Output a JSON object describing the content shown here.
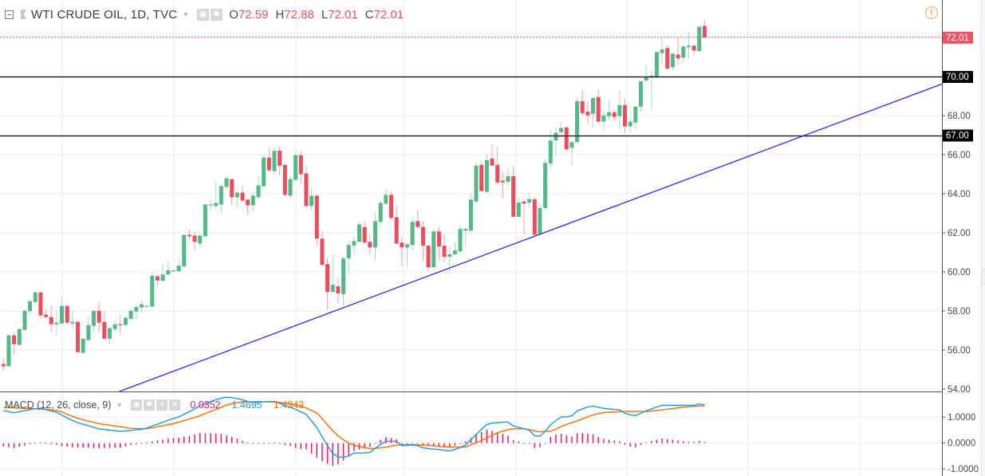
{
  "header": {
    "title": "WTI CRUDE OIL, 1D, TVC",
    "open_label": "O",
    "open": "72.59",
    "high_label": "H",
    "high": "72.88",
    "low_label": "L",
    "low": "72.01",
    "close_label": "C",
    "close": "72.01",
    "icons": [
      "collapse-icon",
      "flag-icon",
      "chevron-down-icon",
      "eye-icon",
      "gear-icon",
      "warning-icon"
    ]
  },
  "macd_legend": {
    "title": "MACD (12, 26, close, 9)",
    "histogram_value": "0.0352",
    "macd_value": "1.4695",
    "signal_value": "1.4343",
    "icons": [
      "chevron-down-icon",
      "eye-icon",
      "gear-icon",
      "plus-icon",
      "close-icon"
    ]
  },
  "colors": {
    "up": "#53b987",
    "down": "#eb4d5c",
    "up_wick": "#a6dcc2",
    "down_wick": "#f6a1a8",
    "macd": "#2196f3",
    "signal": "#ff6d00",
    "histogram": "#e91e63",
    "trendline": "#2a2aff",
    "level_line": "#000000",
    "last_price": "#ef5366",
    "grid": "#e6edf3"
  },
  "chart_data": [
    {
      "type": "candlestick",
      "title": "WTI CRUDE OIL, 1D, TVC",
      "ylim": [
        53.9,
        73.8
      ],
      "y_ticks": [
        "54.00",
        "56.00",
        "58.00",
        "60.00",
        "62.00",
        "64.00",
        "66.00",
        "68.00"
      ],
      "grid": true,
      "horizontal_lines": [
        {
          "price": 70.0,
          "label": "70.00"
        },
        {
          "price": 67.0,
          "label": "67.00"
        }
      ],
      "last_price": {
        "price": 72.01,
        "label": "72.01"
      },
      "trendline": {
        "start": {
          "bar": 23,
          "price": 54.0
        },
        "end": {
          "bar": 176.7,
          "price": 69.62
        }
      },
      "candles_ohlc": [
        [
          55.28,
          55.56,
          54.95,
          55.17
        ],
        [
          55.17,
          56.8,
          55.17,
          56.75
        ],
        [
          56.75,
          56.9,
          55.78,
          56.3
        ],
        [
          56.26,
          57.15,
          56.26,
          57.07
        ],
        [
          57.03,
          58.1,
          57.03,
          58.01
        ],
        [
          57.99,
          58.55,
          57.8,
          58.5
        ],
        [
          58.46,
          59.0,
          58.4,
          58.95
        ],
        [
          58.95,
          58.95,
          57.6,
          57.77
        ],
        [
          57.81,
          58.1,
          57.6,
          57.69
        ],
        [
          57.69,
          58.3,
          56.9,
          57.32
        ],
        [
          57.32,
          58.01,
          56.73,
          57.4
        ],
        [
          57.36,
          58.7,
          57.3,
          58.26
        ],
        [
          58.26,
          58.3,
          57.35,
          57.4
        ],
        [
          57.36,
          58.0,
          57.1,
          57.44
        ],
        [
          57.44,
          57.5,
          55.89,
          55.89
        ],
        [
          55.85,
          56.6,
          55.8,
          56.58
        ],
        [
          56.5,
          57.7,
          56.5,
          57.28
        ],
        [
          57.24,
          58.01,
          56.9,
          58.01
        ],
        [
          58.01,
          58.5,
          56.9,
          57.4
        ],
        [
          57.44,
          58.0,
          56.55,
          56.58
        ],
        [
          56.58,
          57.2,
          56.3,
          57.12
        ],
        [
          57.07,
          57.5,
          56.9,
          57.32
        ],
        [
          57.32,
          57.8,
          56.8,
          57.28
        ],
        [
          57.28,
          57.75,
          57.2,
          57.65
        ],
        [
          57.6,
          58.1,
          57.4,
          58.01
        ],
        [
          57.97,
          58.3,
          57.6,
          58.2
        ],
        [
          58.18,
          58.5,
          57.9,
          58.34
        ],
        [
          58.22,
          58.3,
          58.2,
          58.26
        ],
        [
          58.22,
          59.96,
          58.2,
          59.8
        ],
        [
          59.77,
          59.9,
          59.3,
          59.56
        ],
        [
          59.54,
          60.4,
          59.5,
          59.87
        ],
        [
          59.87,
          60.5,
          59.8,
          60.08
        ],
        [
          60.03,
          60.1,
          60.0,
          60.08
        ],
        [
          60.03,
          60.7,
          60.0,
          60.32
        ],
        [
          60.28,
          61.9,
          60.2,
          61.9
        ],
        [
          61.9,
          62.2,
          61.6,
          61.82
        ],
        [
          61.86,
          62.05,
          61.1,
          61.54
        ],
        [
          61.45,
          61.96,
          61.3,
          61.86
        ],
        [
          61.82,
          63.45,
          61.8,
          63.45
        ],
        [
          63.41,
          63.7,
          63.1,
          63.45
        ],
        [
          63.37,
          64.6,
          63.3,
          63.53
        ],
        [
          63.45,
          64.5,
          63.0,
          64.39
        ],
        [
          64.35,
          64.9,
          64.2,
          64.79
        ],
        [
          64.75,
          64.8,
          63.4,
          63.82
        ],
        [
          63.82,
          64.15,
          63.3,
          64.06
        ],
        [
          64.06,
          64.4,
          63.6,
          63.65
        ],
        [
          63.7,
          63.75,
          62.9,
          63.41
        ],
        [
          63.41,
          64.1,
          63.1,
          63.9
        ],
        [
          63.82,
          64.9,
          63.75,
          64.43
        ],
        [
          64.39,
          66.0,
          64.3,
          65.85
        ],
        [
          65.85,
          66.3,
          65.1,
          65.2
        ],
        [
          65.16,
          66.35,
          64.97,
          66.2
        ],
        [
          66.2,
          66.45,
          64.9,
          65.44
        ],
        [
          65.48,
          65.5,
          63.9,
          63.94
        ],
        [
          63.9,
          64.95,
          63.75,
          64.75
        ],
        [
          64.71,
          66.2,
          64.7,
          65.97
        ],
        [
          65.97,
          66.2,
          64.5,
          65.0
        ],
        [
          65.04,
          65.4,
          63.35,
          63.37
        ],
        [
          63.37,
          64.3,
          63.2,
          63.9
        ],
        [
          63.9,
          64.0,
          61.3,
          61.7
        ],
        [
          61.7,
          62.1,
          60.3,
          60.36
        ],
        [
          60.4,
          60.7,
          58.04,
          58.98
        ],
        [
          58.98,
          60.9,
          58.9,
          59.34
        ],
        [
          59.26,
          59.7,
          58.4,
          58.9
        ],
        [
          58.86,
          60.8,
          58.3,
          60.69
        ],
        [
          60.69,
          61.6,
          59.9,
          61.38
        ],
        [
          61.34,
          61.8,
          60.9,
          61.58
        ],
        [
          61.54,
          62.55,
          61.5,
          62.43
        ],
        [
          62.3,
          62.6,
          61.45,
          61.5
        ],
        [
          61.54,
          61.9,
          60.9,
          61.25
        ],
        [
          61.25,
          63.0,
          60.6,
          62.6
        ],
        [
          62.56,
          63.7,
          62.3,
          63.53
        ],
        [
          63.49,
          64.25,
          63.4,
          63.94
        ],
        [
          63.94,
          64.1,
          62.7,
          62.76
        ],
        [
          62.8,
          63.4,
          61.4,
          61.45
        ],
        [
          61.5,
          61.8,
          60.3,
          61.25
        ],
        [
          61.25,
          61.5,
          60.3,
          61.41
        ],
        [
          61.38,
          62.8,
          61.1,
          62.56
        ],
        [
          62.6,
          63.2,
          62.2,
          62.3
        ],
        [
          62.3,
          62.6,
          60.6,
          61.34
        ],
        [
          61.34,
          61.4,
          60.0,
          60.24
        ],
        [
          60.24,
          62.2,
          60.2,
          62.07
        ],
        [
          62.07,
          62.3,
          60.6,
          61.3
        ],
        [
          61.34,
          61.9,
          60.5,
          60.77
        ],
        [
          60.77,
          61.3,
          60.0,
          60.9
        ],
        [
          60.9,
          61.5,
          60.85,
          61.1
        ],
        [
          61.05,
          62.4,
          61.0,
          62.2
        ],
        [
          62.11,
          62.3,
          61.3,
          62.2
        ],
        [
          62.11,
          64.0,
          62.0,
          63.7
        ],
        [
          63.6,
          65.6,
          63.5,
          65.44
        ],
        [
          65.48,
          65.7,
          64.1,
          64.14
        ],
        [
          64.1,
          66.0,
          64.05,
          65.72
        ],
        [
          65.8,
          66.54,
          65.4,
          65.44
        ],
        [
          65.48,
          66.4,
          64.5,
          64.58
        ],
        [
          64.67,
          65.1,
          63.75,
          64.58
        ],
        [
          64.61,
          65.3,
          64.4,
          64.9
        ],
        [
          64.9,
          65.4,
          62.8,
          62.82
        ],
        [
          62.82,
          63.8,
          62.8,
          63.55
        ],
        [
          63.6,
          63.7,
          61.9,
          63.5
        ],
        [
          63.55,
          64.05,
          63.3,
          63.72
        ],
        [
          63.72,
          63.8,
          61.88,
          61.9
        ],
        [
          61.93,
          63.5,
          61.9,
          63.27
        ],
        [
          63.27,
          65.8,
          63.2,
          65.58
        ],
        [
          65.55,
          67.2,
          65.3,
          66.72
        ],
        [
          66.72,
          67.4,
          65.9,
          67.12
        ],
        [
          67.16,
          67.7,
          67.0,
          67.37
        ],
        [
          67.4,
          67.45,
          66.2,
          66.27
        ],
        [
          66.35,
          66.7,
          65.4,
          66.64
        ],
        [
          66.64,
          68.9,
          66.6,
          68.74
        ],
        [
          68.74,
          69.3,
          68.0,
          68.13
        ],
        [
          68.2,
          68.7,
          67.6,
          68.01
        ],
        [
          68.1,
          69.0,
          67.4,
          68.9
        ],
        [
          68.95,
          69.35,
          67.65,
          67.69
        ],
        [
          67.69,
          68.2,
          67.2,
          68.01
        ],
        [
          67.97,
          68.8,
          67.8,
          68.17
        ],
        [
          68.17,
          68.3,
          67.75,
          67.93
        ],
        [
          67.97,
          69.3,
          67.3,
          68.54
        ],
        [
          68.54,
          68.85,
          67.1,
          67.45
        ],
        [
          67.45,
          67.9,
          67.1,
          67.69
        ],
        [
          67.65,
          68.5,
          67.3,
          68.46
        ],
        [
          68.46,
          69.8,
          68.2,
          69.75
        ],
        [
          69.8,
          70.6,
          69.7,
          69.96
        ],
        [
          70.0,
          70.35,
          68.3,
          70.04
        ],
        [
          69.96,
          71.3,
          69.9,
          71.25
        ],
        [
          71.2,
          71.9,
          70.6,
          71.38
        ],
        [
          71.46,
          71.6,
          70.4,
          70.4
        ],
        [
          70.48,
          71.2,
          70.3,
          71.17
        ],
        [
          71.13,
          72.0,
          70.6,
          70.93
        ],
        [
          70.97,
          71.55,
          70.8,
          71.54
        ],
        [
          71.5,
          72.3,
          70.9,
          71.58
        ],
        [
          71.58,
          71.6,
          71.1,
          71.34
        ],
        [
          71.3,
          72.55,
          71.3,
          72.55
        ],
        [
          72.59,
          72.88,
          72.01,
          72.01
        ]
      ]
    },
    {
      "type": "line",
      "title": "MACD (12, 26, close, 9)",
      "ylim": [
        -1.1,
        1.95
      ],
      "y_ticks": [
        "1.0000",
        "0.0000",
        "-1.0000"
      ],
      "grid": true,
      "series": [
        {
          "values": [
            1.25,
            1.21,
            1.17,
            1.21,
            1.25,
            1.29,
            1.33,
            1.34,
            1.29,
            1.24,
            1.19,
            1.08,
            0.97,
            0.87,
            0.79,
            0.73,
            0.67,
            0.61,
            0.55,
            0.53,
            0.5,
            0.48,
            0.45,
            0.47,
            0.49,
            0.51,
            0.53,
            0.58,
            0.66,
            0.73,
            0.8,
            0.88,
            0.95,
            1.01,
            1.11,
            1.21,
            1.32,
            1.45,
            1.52,
            1.6,
            1.67,
            1.74,
            1.77,
            1.75,
            1.72,
            1.67,
            1.61,
            1.57,
            1.58,
            1.59,
            1.6,
            1.61,
            1.54,
            1.46,
            1.39,
            1.3,
            1.2,
            1.11,
            0.85,
            0.6,
            0.25,
            -0.1,
            -0.4,
            -0.54,
            -0.54,
            -0.5,
            -0.38,
            -0.38,
            -0.38,
            -0.36,
            -0.2,
            -0.05,
            0.07,
            0.07,
            0.07,
            -0.1,
            -0.09,
            -0.07,
            -0.1,
            -0.18,
            -0.21,
            -0.23,
            -0.25,
            -0.28,
            -0.3,
            -0.25,
            -0.17,
            -0.08,
            0.13,
            0.33,
            0.53,
            0.72,
            0.77,
            0.79,
            0.81,
            0.81,
            0.66,
            0.61,
            0.55,
            0.5,
            0.28,
            0.27,
            0.45,
            0.7,
            0.87,
            1.0,
            1.02,
            1.05,
            1.24,
            1.32,
            1.39,
            1.43,
            1.38,
            1.34,
            1.32,
            1.3,
            1.28,
            1.15,
            1.09,
            1.06,
            1.15,
            1.25,
            1.32,
            1.39,
            1.46,
            1.46,
            1.46,
            1.46,
            1.46,
            1.46,
            1.46,
            1.51,
            1.47
          ]
        },
        {
          "values": [
            1.38,
            1.37,
            1.36,
            1.35,
            1.34,
            1.33,
            1.32,
            1.32,
            1.3,
            1.28,
            1.26,
            1.2,
            1.11,
            1.03,
            0.96,
            0.9,
            0.85,
            0.8,
            0.75,
            0.72,
            0.69,
            0.66,
            0.63,
            0.6,
            0.57,
            0.56,
            0.56,
            0.56,
            0.59,
            0.63,
            0.67,
            0.71,
            0.75,
            0.81,
            0.87,
            0.93,
            0.99,
            1.06,
            1.14,
            1.22,
            1.3,
            1.38,
            1.47,
            1.51,
            1.55,
            1.59,
            1.59,
            1.59,
            1.59,
            1.59,
            1.59,
            1.59,
            1.57,
            1.54,
            1.51,
            1.48,
            1.43,
            1.35,
            1.26,
            1.16,
            0.95,
            0.7,
            0.48,
            0.28,
            0.13,
            0.0,
            -0.08,
            -0.13,
            -0.17,
            -0.21,
            -0.2,
            -0.18,
            -0.16,
            -0.12,
            -0.08,
            -0.06,
            -0.06,
            -0.06,
            -0.07,
            -0.08,
            -0.09,
            -0.11,
            -0.13,
            -0.14,
            -0.15,
            -0.15,
            -0.16,
            -0.15,
            -0.07,
            0.02,
            0.1,
            0.2,
            0.3,
            0.4,
            0.46,
            0.52,
            0.55,
            0.55,
            0.55,
            0.52,
            0.47,
            0.43,
            0.45,
            0.46,
            0.54,
            0.64,
            0.72,
            0.79,
            0.86,
            0.94,
            1.02,
            1.09,
            1.14,
            1.18,
            1.19,
            1.2,
            1.21,
            1.22,
            1.22,
            1.22,
            1.22,
            1.22,
            1.24,
            1.26,
            1.28,
            1.31,
            1.33,
            1.36,
            1.39,
            1.41,
            1.42,
            1.43,
            1.43
          ]
        }
      ],
      "histogram": "macd minus signal"
    }
  ]
}
